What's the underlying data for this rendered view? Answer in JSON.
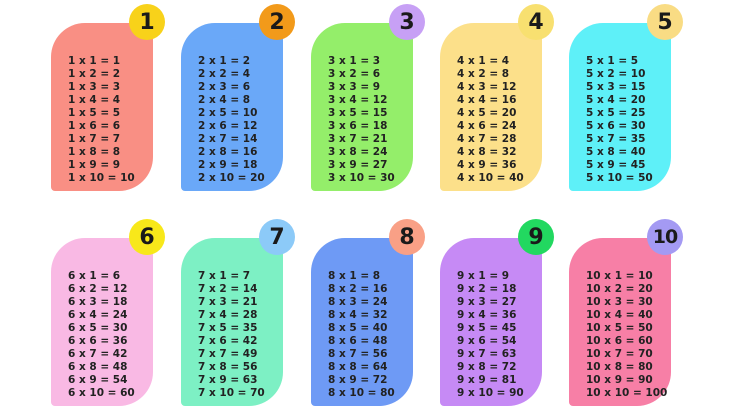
{
  "tables": [
    {
      "number": "1",
      "card_color": "#f98f84",
      "badge_color": "#f8d21a",
      "lines": [
        "1 x 1 = 1",
        "1 x 2 = 2",
        "1 x 3 = 3",
        "1 x 4 = 4",
        "1 x 5 = 5",
        "1 x 6 = 6",
        "1 x 7 = 7",
        "1 x 8 = 8",
        "1 x 9 = 9",
        "1 x 10 = 10"
      ]
    },
    {
      "number": "2",
      "card_color": "#6aa8f8",
      "badge_color": "#f29a1a",
      "lines": [
        "2 x 1 = 2",
        "2 x 2 = 4",
        "2 x 3 = 6",
        "2 x 4 = 8",
        "2 x 5 = 10",
        "2 x 6 = 12",
        "2 x 7 = 14",
        "2 x 8 = 16",
        "2 x 9 = 18",
        "2 x 10 = 20"
      ]
    },
    {
      "number": "3",
      "card_color": "#94ee6a",
      "badge_color": "#c7a0f5",
      "lines": [
        "3 x 1 = 3",
        "3 x 2 = 6",
        "3 x 3 = 9",
        "3 x 4 = 12",
        "3 x 5 = 15",
        "3 x 6 = 18",
        "3 x 7 = 21",
        "3 x 8 = 24",
        "3 x 9 = 27",
        "3 x 10 = 30"
      ]
    },
    {
      "number": "4",
      "card_color": "#fce08a",
      "badge_color": "#f8e070",
      "lines": [
        "4 x 1 = 4",
        "4 x 2 = 8",
        "4 x 3 = 12",
        "4 x 4 = 16",
        "4 x 5 = 20",
        "4 x 6 = 24",
        "4 x 7 = 28",
        "4 x 8 = 32",
        "4 x 9 = 36",
        "4 x 10 = 40"
      ]
    },
    {
      "number": "5",
      "card_color": "#5ef0f8",
      "badge_color": "#f9dc84",
      "lines": [
        "5 x 1 = 5",
        "5 x 2 = 10",
        "5 x 3 = 15",
        "5 x 4 = 20",
        "5 x 5 = 25",
        "5 x 6 = 30",
        "5 x 7 = 35",
        "5 x 8 = 40",
        "5 x 9 = 45",
        "5 x 10 = 50"
      ]
    },
    {
      "number": "6",
      "card_color": "#f9b9e4",
      "badge_color": "#f8e81a",
      "lines": [
        "6 x 1 = 6",
        "6 x 2 = 12",
        "6 x 3 = 18",
        "6 x 4 = 24",
        "6 x 5 = 30",
        "6 x 6 = 36",
        "6 x 7 = 42",
        "6 x 8 = 48",
        "6 x 9 = 54",
        "6 x 10 = 60"
      ]
    },
    {
      "number": "7",
      "card_color": "#7df0c4",
      "badge_color": "#8ccaf8",
      "lines": [
        "7 x 1 = 7",
        "7 x 2 = 14",
        "7 x 3 = 21",
        "7 x 4 = 28",
        "7 x 5 = 35",
        "7 x 6 = 42",
        "7 x 7 = 49",
        "7 x 8 = 56",
        "7 x 9 = 63",
        "7 x 10 = 70"
      ]
    },
    {
      "number": "8",
      "card_color": "#6e9af5",
      "badge_color": "#f9a086",
      "lines": [
        "8 x 1 = 8",
        "8 x 2 = 16",
        "8 x 3 = 24",
        "8 x 4 = 32",
        "8 x 5 = 40",
        "8 x 6 = 48",
        "8 x 7 = 56",
        "8 x 8 = 64",
        "8 x 9 = 72",
        "8 x 10 = 80"
      ]
    },
    {
      "number": "9",
      "card_color": "#c68af5",
      "badge_color": "#22d860",
      "lines": [
        "9 x 1 = 9",
        "9 x 2 = 18",
        "9 x 3 = 27",
        "9 x 4 = 36",
        "9 x 5 = 45",
        "9 x 6 = 54",
        "9 x 7 = 63",
        "9 x 8 = 72",
        "9 x 9 = 81",
        "9 x 10 = 90"
      ]
    },
    {
      "number": "10",
      "card_color": "#f77fa6",
      "badge_color": "#a49af3",
      "lines": [
        "10 x 1 = 10",
        "10 x 2 = 20",
        "10 x 3 = 30",
        "10 x 4 = 40",
        "10 x 5 = 50",
        "10 x 6 = 60",
        "10 x 7 = 70",
        "10 x 8 = 80",
        "10 x 9 = 90",
        "10 x 10 = 100"
      ]
    }
  ]
}
